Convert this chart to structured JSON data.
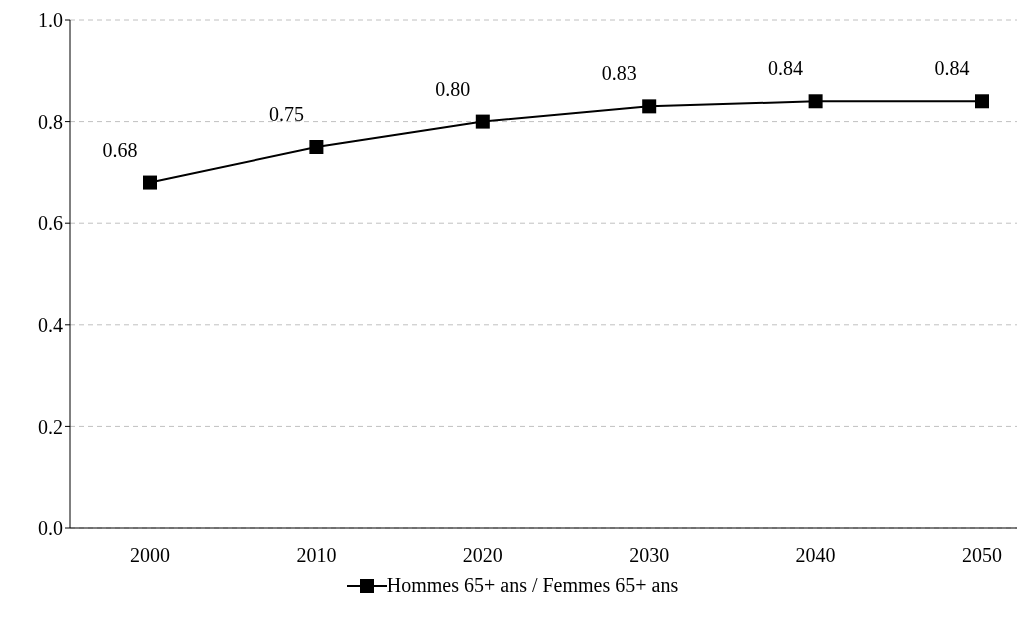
{
  "chart_data": {
    "type": "line",
    "categories": [
      "2000",
      "2010",
      "2020",
      "2030",
      "2040",
      "2050"
    ],
    "series": [
      {
        "name": "Hommes 65+ ans / Femmes 65+ ans",
        "color": "#000000",
        "values": [
          0.68,
          0.75,
          0.8,
          0.83,
          0.84,
          0.84
        ],
        "value_labels": [
          "0.68",
          "0.75",
          "0.80",
          "0.83",
          "0.84",
          "0.84"
        ]
      }
    ],
    "ylim": [
      0,
      1
    ],
    "yticks": [
      {
        "value": 0,
        "label": "0.0"
      },
      {
        "value": 0.2,
        "label": "0.2"
      },
      {
        "value": 0.4,
        "label": "0.4"
      },
      {
        "value": 0.6,
        "label": "0.6"
      },
      {
        "value": 0.8,
        "label": "0.8"
      },
      {
        "value": 1,
        "label": "1.0"
      }
    ],
    "grid": "y",
    "legend": "bottom",
    "marker": "square",
    "line_style": "solid"
  }
}
